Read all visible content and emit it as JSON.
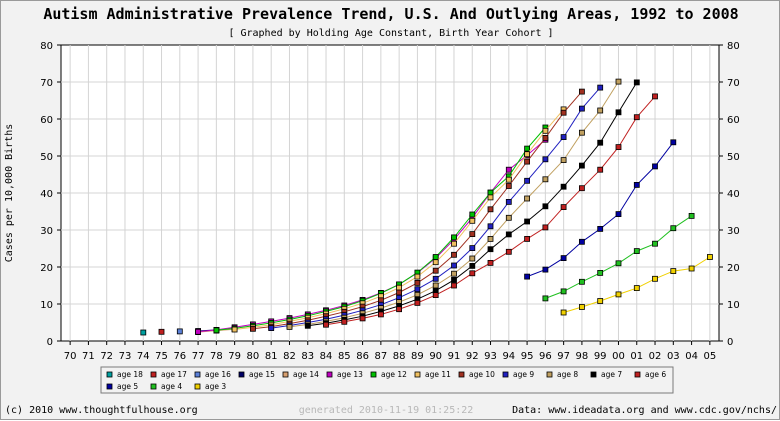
{
  "chart_data": {
    "type": "line",
    "title": "Autism Administrative Prevalence Trend, U.S. And Outlying Areas, 1992 to 2008",
    "subtitle": "[ Graphed by Holding Age Constant, Birth Year Cohort ]",
    "xlabel": "",
    "ylabel": "Cases per 10,000 Births",
    "x_categories": [
      "70",
      "71",
      "72",
      "73",
      "74",
      "75",
      "76",
      "77",
      "78",
      "79",
      "80",
      "81",
      "82",
      "83",
      "84",
      "85",
      "86",
      "87",
      "88",
      "89",
      "90",
      "91",
      "92",
      "93",
      "94",
      "95",
      "96",
      "97",
      "98",
      "99",
      "00",
      "01",
      "02",
      "03",
      "04",
      "05"
    ],
    "ylim": [
      0,
      80
    ],
    "y_ticks": [
      0,
      10,
      20,
      30,
      40,
      50,
      60,
      70,
      80
    ],
    "grid": true,
    "legend_position": "bottom",
    "series": [
      {
        "name": "age 18",
        "color": "#00a0a0",
        "x_start": 4,
        "values": [
          2.3
        ]
      },
      {
        "name": "age 17",
        "color": "#c02020",
        "x_start": 5,
        "values": [
          2.5
        ]
      },
      {
        "name": "age 16",
        "color": "#5b80d8",
        "x_start": 6,
        "values": [
          2.6
        ]
      },
      {
        "name": "age 15",
        "color": "#000066",
        "x_start": 7,
        "values": [
          2.7,
          3.0
        ]
      },
      {
        "name": "age 14",
        "color": "#d8a070",
        "x_start": 7,
        "values": [
          2.4,
          2.8,
          3.2
        ]
      },
      {
        "name": "age 13",
        "color": "#c000c0",
        "x_start": 7,
        "values": [
          2.5,
          3.0,
          3.7,
          4.5,
          5.3,
          6.2,
          7.2,
          8.3,
          9.6,
          11.1,
          13.0,
          15.3,
          18.4,
          22.4,
          27.4,
          33.3,
          40.1,
          46.3,
          50.2,
          54.4
        ]
      },
      {
        "name": "age 12",
        "color": "#00c000",
        "x_start": 8,
        "values": [
          2.9,
          3.4,
          4.1,
          4.9,
          5.8,
          6.8,
          8.0,
          9.3,
          10.9,
          12.9,
          15.3,
          18.5,
          22.7,
          28.0,
          34.2,
          40.1,
          44.5,
          52.0,
          57.7
        ]
      },
      {
        "name": "age 11",
        "color": "#f0c060",
        "x_start": 9,
        "values": [
          3.1,
          3.7,
          4.4,
          5.3,
          6.3,
          7.4,
          8.7,
          10.2,
          12.1,
          14.4,
          17.4,
          21.3,
          26.3,
          32.5,
          38.8,
          43.6,
          50.5,
          56.8,
          62.6
        ]
      },
      {
        "name": "age 10",
        "color": "#a03020",
        "x_start": 10,
        "values": [
          3.3,
          3.9,
          4.7,
          5.6,
          6.7,
          7.9,
          9.3,
          11.0,
          13.1,
          15.7,
          19.0,
          23.3,
          28.9,
          35.6,
          41.9,
          48.5,
          54.9,
          61.7,
          67.4
        ]
      },
      {
        "name": "age 9",
        "color": "#2020c0",
        "x_start": 11,
        "values": [
          3.5,
          4.2,
          5.0,
          5.9,
          7.0,
          8.3,
          9.8,
          11.7,
          14.0,
          16.8,
          20.4,
          25.1,
          31.0,
          37.6,
          43.3,
          49.1,
          55.1,
          62.8,
          68.5
        ]
      },
      {
        "name": "age 8",
        "color": "#c0a060",
        "x_start": 12,
        "values": [
          3.8,
          4.5,
          5.3,
          6.3,
          7.5,
          8.9,
          10.5,
          12.5,
          15.0,
          18.2,
          22.3,
          27.6,
          33.3,
          38.5,
          43.7,
          48.9,
          56.3,
          62.3,
          70.1
        ]
      },
      {
        "name": "age 7",
        "color": "#000000",
        "x_start": 13,
        "values": [
          4.1,
          4.8,
          5.7,
          6.7,
          8.0,
          9.5,
          11.3,
          13.6,
          16.5,
          20.3,
          24.8,
          28.8,
          32.3,
          36.4,
          41.7,
          47.4,
          53.6,
          61.8,
          69.9
        ]
      },
      {
        "name": "age 6",
        "color": "#c02020",
        "x_start": 14,
        "values": [
          4.4,
          5.2,
          6.1,
          7.2,
          8.6,
          10.3,
          12.4,
          15.0,
          18.3,
          21.1,
          24.1,
          27.6,
          30.7,
          36.2,
          41.3,
          46.3,
          52.4,
          60.5,
          66.1
        ]
      },
      {
        "name": "age 5",
        "color": "#0000a0",
        "x_start": 25,
        "values": [
          17.4,
          19.3,
          22.4,
          26.8,
          30.3,
          34.3,
          42.2,
          47.2,
          53.7
        ]
      },
      {
        "name": "age 4",
        "color": "#20c020",
        "x_start": 26,
        "values": [
          11.5,
          13.4,
          16.0,
          18.4,
          21.0,
          24.3,
          26.3,
          30.5,
          33.8
        ]
      },
      {
        "name": "age 3",
        "color": "#f0d000",
        "x_start": 27,
        "values": [
          7.7,
          9.2,
          10.8,
          12.6,
          14.3,
          16.8,
          18.9,
          19.6,
          22.7
        ]
      }
    ]
  },
  "footer": {
    "copyright": "(c) 2010 www.thoughtfulhouse.org",
    "generated": "generated 2010-11-19 01:25:22",
    "source": "Data: www.ideadata.org and www.cdc.gov/nchs/"
  }
}
